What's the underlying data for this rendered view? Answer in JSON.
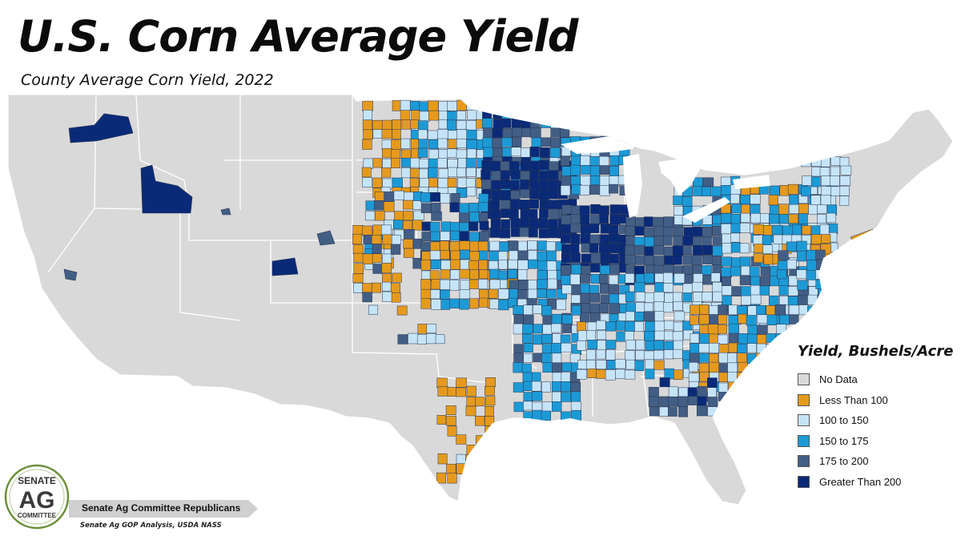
{
  "title": "U.S. Corn Average Yield",
  "subtitle": "County Average Corn Yield, 2022",
  "legend": {
    "title": "Yield, Bushels/Acre",
    "items": [
      {
        "label": "No Data",
        "color": "#d9d9d9"
      },
      {
        "label": "Less Than 100",
        "color": "#e59a1e"
      },
      {
        "label": "100 to 150",
        "color": "#c6e4f7"
      },
      {
        "label": "150 to 175",
        "color": "#1c9ad6"
      },
      {
        "label": "175 to 200",
        "color": "#425e85"
      },
      {
        "label": "Greater Than 200",
        "color": "#0a2a78"
      }
    ]
  },
  "logo": {
    "line1": "SENATE",
    "line2": "AG",
    "line3": "COMMITTEE"
  },
  "footer": {
    "banner": "Senate Ag Committee Republicans",
    "source": "Senate Ag GOP Analysis, USDA NASS"
  }
}
